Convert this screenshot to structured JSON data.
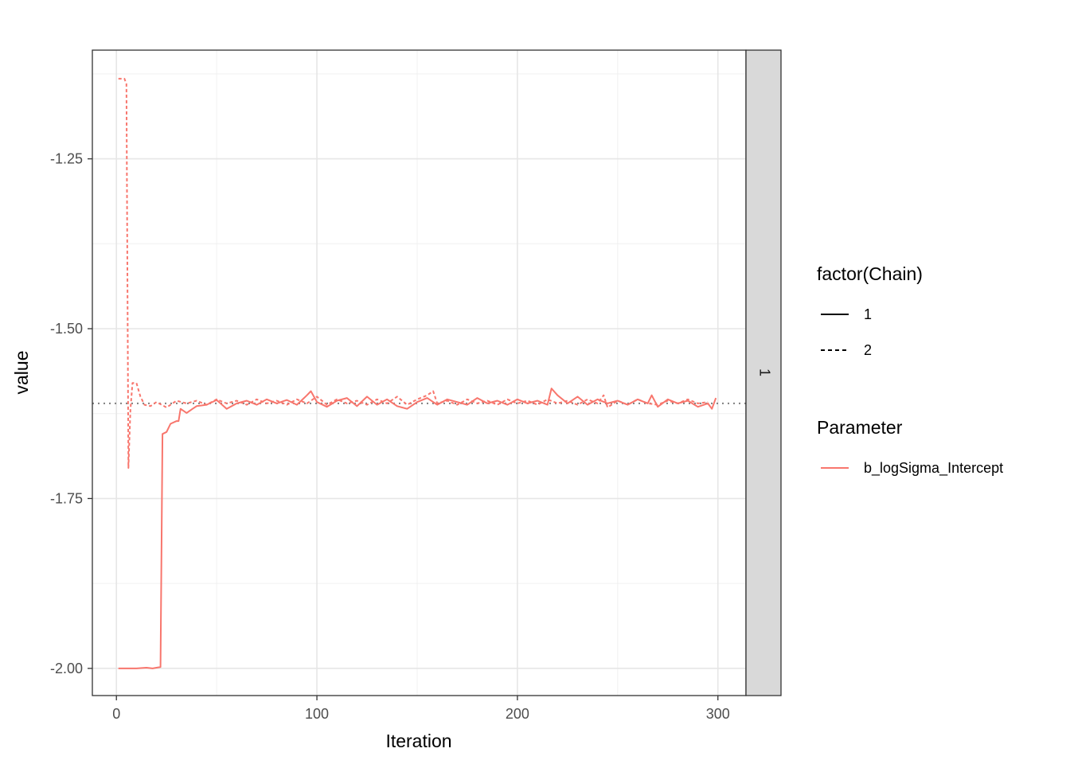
{
  "chart_data": {
    "type": "line",
    "xlabel": "Iteration",
    "ylabel": "value",
    "xlim": [
      -12,
      314
    ],
    "ylim": [
      -2.04,
      -1.09
    ],
    "x_ticks": [
      0,
      100,
      200,
      300
    ],
    "x_tick_labels": [
      "0",
      "100",
      "200",
      "300"
    ],
    "y_ticks": [
      -1.25,
      -1.5,
      -1.75,
      -2.0
    ],
    "y_tick_labels": [
      "-1.25",
      "-1.50",
      "-1.75",
      "-2.00"
    ],
    "grid": true,
    "facet_strip_label": "1",
    "reference_line": {
      "y": -1.61,
      "style": "dotted",
      "color": "#7f7f7f"
    },
    "legend_placement": "right",
    "legends": [
      {
        "title": "factor(Chain)",
        "entries": [
          {
            "label": "1",
            "linestyle": "solid"
          },
          {
            "label": "2",
            "linestyle": "dashed"
          }
        ]
      },
      {
        "title": "Parameter",
        "entries": [
          {
            "label": "b_logSigma_Intercept",
            "color": "#F8766D"
          }
        ]
      }
    ],
    "series": [
      {
        "chain": "1",
        "parameter": "b_logSigma_Intercept",
        "color": "#F8766D",
        "linestyle": "solid",
        "points": [
          [
            1,
            -2.0
          ],
          [
            5,
            -2.0
          ],
          [
            10,
            -2.0
          ],
          [
            15,
            -1.999
          ],
          [
            18,
            -2.0
          ],
          [
            22,
            -1.998
          ],
          [
            23,
            -1.655
          ],
          [
            25,
            -1.652
          ],
          [
            27,
            -1.64
          ],
          [
            30,
            -1.636
          ],
          [
            31,
            -1.636
          ],
          [
            32,
            -1.618
          ],
          [
            35,
            -1.624
          ],
          [
            38,
            -1.618
          ],
          [
            40,
            -1.614
          ],
          [
            45,
            -1.612
          ],
          [
            50,
            -1.605
          ],
          [
            55,
            -1.618
          ],
          [
            60,
            -1.61
          ],
          [
            65,
            -1.606
          ],
          [
            70,
            -1.612
          ],
          [
            75,
            -1.604
          ],
          [
            80,
            -1.61
          ],
          [
            85,
            -1.605
          ],
          [
            90,
            -1.612
          ],
          [
            95,
            -1.598
          ],
          [
            97,
            -1.592
          ],
          [
            100,
            -1.608
          ],
          [
            105,
            -1.615
          ],
          [
            110,
            -1.606
          ],
          [
            115,
            -1.602
          ],
          [
            120,
            -1.614
          ],
          [
            125,
            -1.6
          ],
          [
            130,
            -1.612
          ],
          [
            135,
            -1.604
          ],
          [
            140,
            -1.614
          ],
          [
            145,
            -1.618
          ],
          [
            150,
            -1.608
          ],
          [
            155,
            -1.602
          ],
          [
            160,
            -1.612
          ],
          [
            165,
            -1.604
          ],
          [
            170,
            -1.608
          ],
          [
            175,
            -1.612
          ],
          [
            180,
            -1.602
          ],
          [
            185,
            -1.61
          ],
          [
            190,
            -1.606
          ],
          [
            195,
            -1.612
          ],
          [
            200,
            -1.604
          ],
          [
            205,
            -1.61
          ],
          [
            210,
            -1.606
          ],
          [
            215,
            -1.612
          ],
          [
            217,
            -1.588
          ],
          [
            220,
            -1.598
          ],
          [
            225,
            -1.61
          ],
          [
            230,
            -1.6
          ],
          [
            235,
            -1.612
          ],
          [
            240,
            -1.604
          ],
          [
            245,
            -1.61
          ],
          [
            250,
            -1.606
          ],
          [
            255,
            -1.612
          ],
          [
            260,
            -1.604
          ],
          [
            265,
            -1.61
          ],
          [
            267,
            -1.598
          ],
          [
            270,
            -1.615
          ],
          [
            275,
            -1.604
          ],
          [
            280,
            -1.61
          ],
          [
            285,
            -1.606
          ],
          [
            290,
            -1.615
          ],
          [
            295,
            -1.61
          ],
          [
            297,
            -1.618
          ],
          [
            299,
            -1.602
          ]
        ]
      },
      {
        "chain": "2",
        "parameter": "b_logSigma_Intercept",
        "color": "#F8766D",
        "linestyle": "dashed",
        "points": [
          [
            1,
            -1.132
          ],
          [
            4,
            -1.132
          ],
          [
            5,
            -1.14
          ],
          [
            6,
            -1.705
          ],
          [
            7,
            -1.62
          ],
          [
            8,
            -1.58
          ],
          [
            10,
            -1.58
          ],
          [
            12,
            -1.6
          ],
          [
            14,
            -1.612
          ],
          [
            17,
            -1.614
          ],
          [
            20,
            -1.608
          ],
          [
            25,
            -1.616
          ],
          [
            30,
            -1.606
          ],
          [
            35,
            -1.61
          ],
          [
            40,
            -1.606
          ],
          [
            45,
            -1.612
          ],
          [
            50,
            -1.604
          ],
          [
            55,
            -1.61
          ],
          [
            60,
            -1.606
          ],
          [
            65,
            -1.612
          ],
          [
            70,
            -1.604
          ],
          [
            75,
            -1.61
          ],
          [
            80,
            -1.606
          ],
          [
            85,
            -1.612
          ],
          [
            90,
            -1.604
          ],
          [
            95,
            -1.61
          ],
          [
            100,
            -1.6
          ],
          [
            105,
            -1.612
          ],
          [
            110,
            -1.604
          ],
          [
            115,
            -1.61
          ],
          [
            120,
            -1.606
          ],
          [
            125,
            -1.612
          ],
          [
            130,
            -1.604
          ],
          [
            135,
            -1.61
          ],
          [
            140,
            -1.6
          ],
          [
            145,
            -1.612
          ],
          [
            150,
            -1.604
          ],
          [
            155,
            -1.598
          ],
          [
            158,
            -1.592
          ],
          [
            160,
            -1.61
          ],
          [
            165,
            -1.606
          ],
          [
            170,
            -1.612
          ],
          [
            175,
            -1.604
          ],
          [
            180,
            -1.61
          ],
          [
            185,
            -1.606
          ],
          [
            190,
            -1.612
          ],
          [
            195,
            -1.604
          ],
          [
            200,
            -1.61
          ],
          [
            205,
            -1.606
          ],
          [
            210,
            -1.612
          ],
          [
            215,
            -1.604
          ],
          [
            220,
            -1.61
          ],
          [
            225,
            -1.606
          ],
          [
            230,
            -1.612
          ],
          [
            235,
            -1.604
          ],
          [
            240,
            -1.61
          ],
          [
            243,
            -1.598
          ],
          [
            245,
            -1.616
          ],
          [
            250,
            -1.606
          ],
          [
            255,
            -1.612
          ],
          [
            260,
            -1.604
          ],
          [
            265,
            -1.61
          ],
          [
            270,
            -1.612
          ],
          [
            275,
            -1.606
          ],
          [
            280,
            -1.61
          ],
          [
            285,
            -1.604
          ],
          [
            290,
            -1.61
          ],
          [
            295,
            -1.608
          ]
        ]
      }
    ]
  }
}
